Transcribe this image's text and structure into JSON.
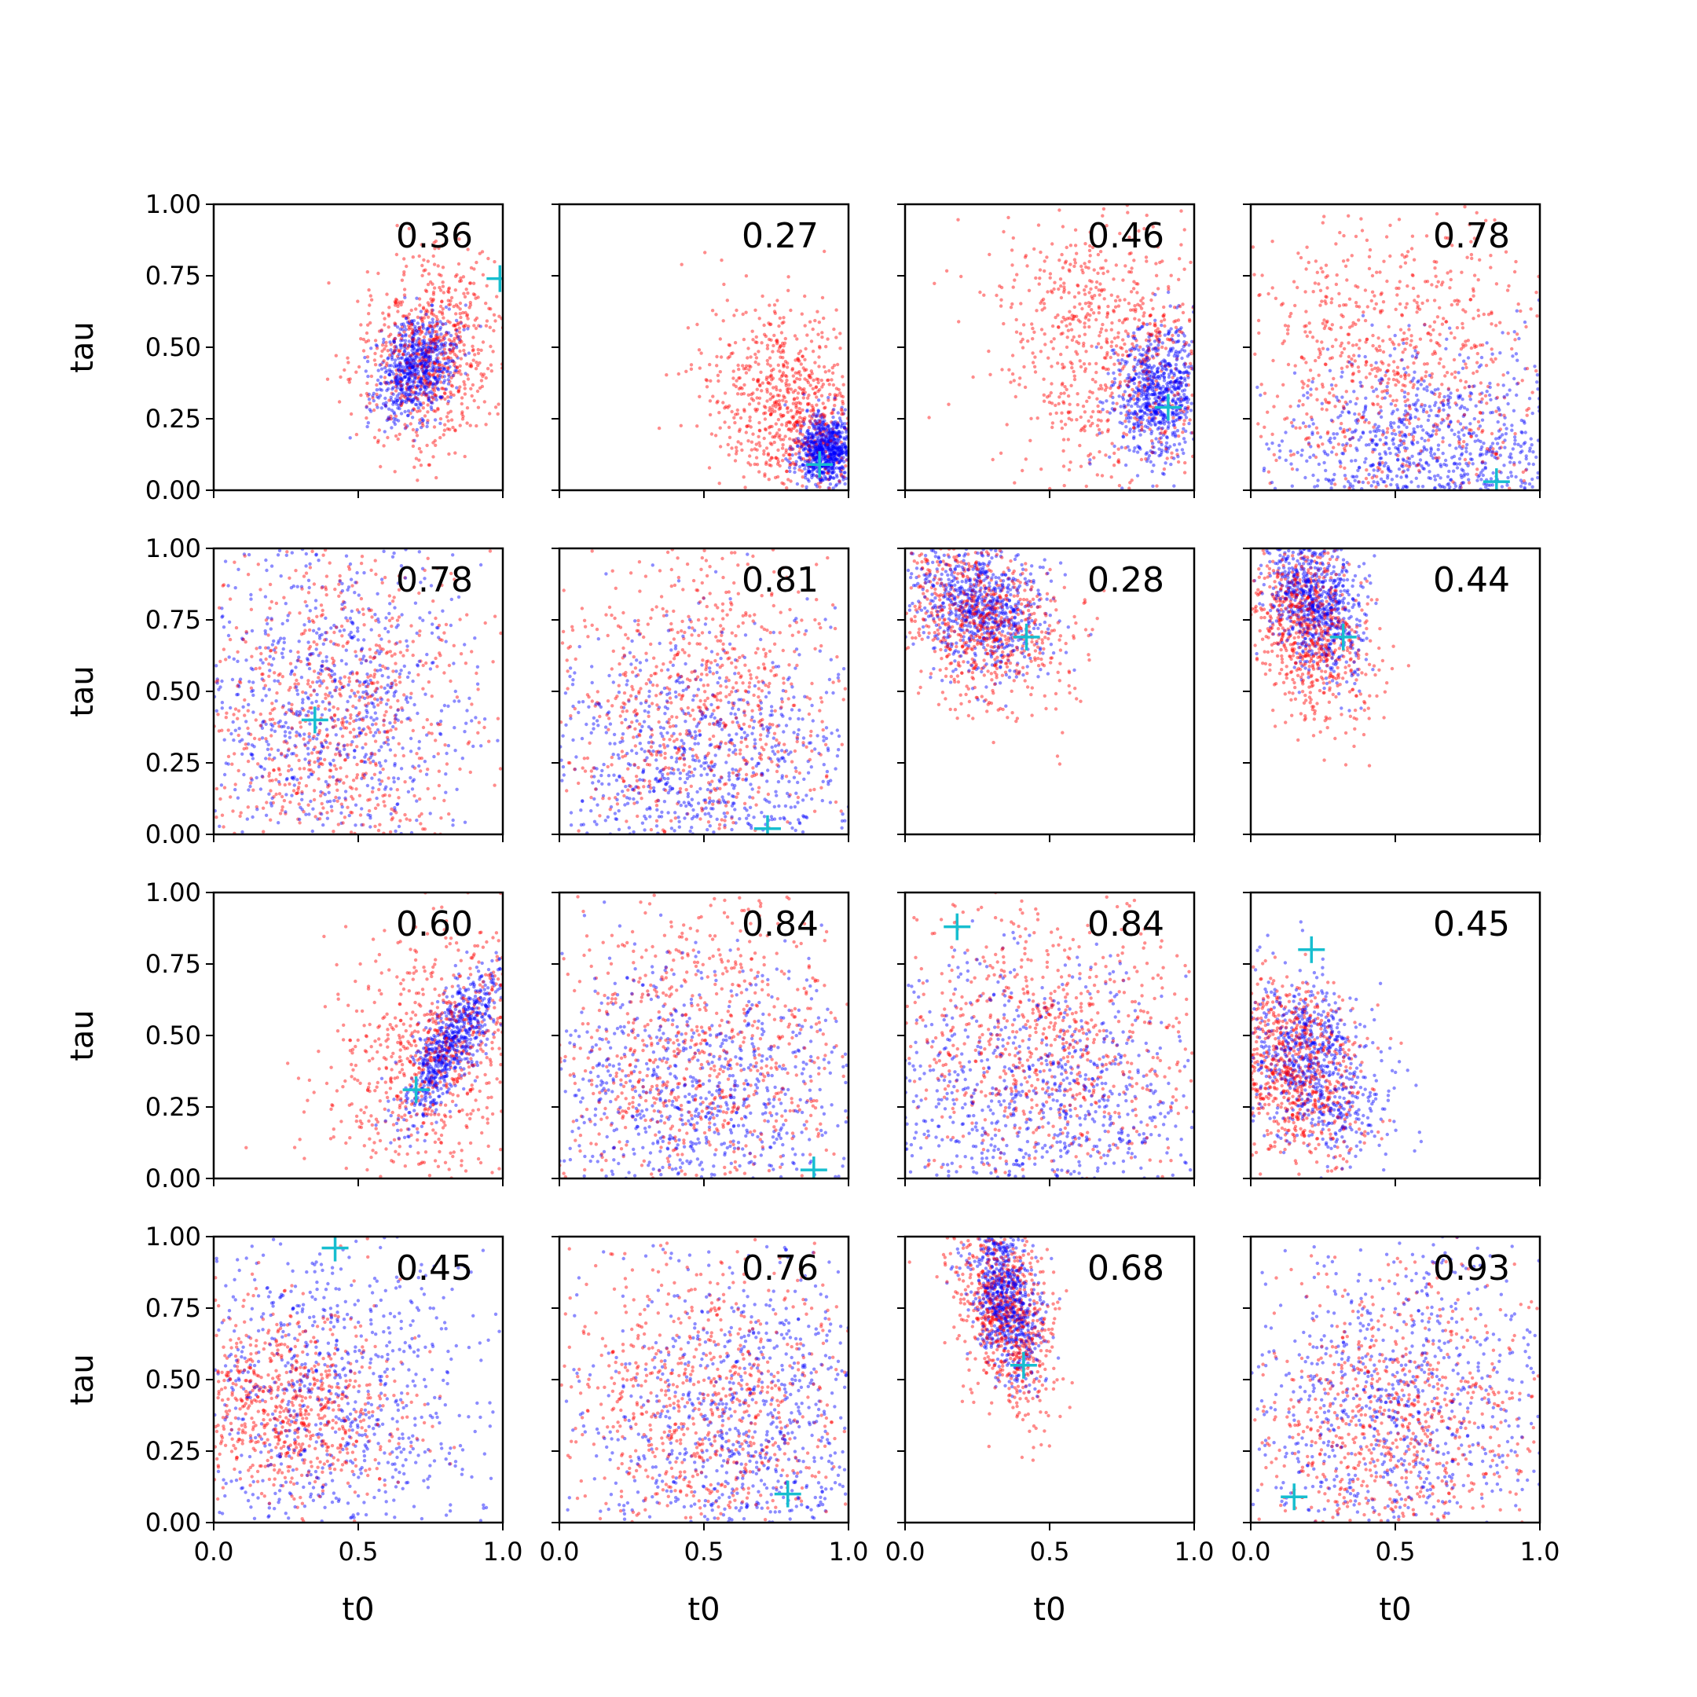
{
  "chart_data": {
    "type": "scatter",
    "layout": "4x4 grid of subplots",
    "xlabel": "t0",
    "ylabel": "tau",
    "xlim": [
      0,
      1
    ],
    "ylim": [
      0,
      1
    ],
    "x_ticks": [
      "0.0",
      "0.5",
      "1.0"
    ],
    "y_ticks": [
      "0.00",
      "0.25",
      "0.50",
      "0.75",
      "1.00"
    ],
    "colors": {
      "red_points": "#ff0000",
      "blue_points": "#0000ff",
      "marker": "#17becf"
    },
    "grid": false,
    "legend": "none",
    "panels": [
      {
        "label": "0.36",
        "marker": [
          0.99,
          0.74
        ],
        "blue": {
          "x": 0.7,
          "y": 0.43,
          "sx": 0.07,
          "sy": 0.09,
          "r": 0.3
        },
        "red": {
          "x": 0.75,
          "y": 0.48,
          "sx": 0.12,
          "sy": 0.17,
          "r": 0.2
        }
      },
      {
        "label": "0.27",
        "marker": [
          0.9,
          0.09
        ],
        "blue": {
          "x": 0.92,
          "y": 0.14,
          "sx": 0.05,
          "sy": 0.06,
          "r": 0.0
        },
        "red": {
          "x": 0.8,
          "y": 0.3,
          "sx": 0.14,
          "sy": 0.16,
          "r": -0.2
        }
      },
      {
        "label": "0.46",
        "marker": [
          0.91,
          0.29
        ],
        "blue": {
          "x": 0.88,
          "y": 0.33,
          "sx": 0.08,
          "sy": 0.12,
          "r": 0.1
        },
        "red": {
          "x": 0.72,
          "y": 0.5,
          "sx": 0.2,
          "sy": 0.24,
          "r": -0.1
        }
      },
      {
        "label": "0.78",
        "marker": [
          0.85,
          0.03
        ],
        "blue": {
          "x": 0.65,
          "y": 0.12,
          "sx": 0.28,
          "sy": 0.18,
          "r": 0.0
        },
        "red": {
          "x": 0.5,
          "y": 0.45,
          "sx": 0.28,
          "sy": 0.28,
          "r": 0.0
        }
      },
      {
        "label": "0.78",
        "marker": [
          0.35,
          0.4
        ],
        "blue": {
          "x": 0.4,
          "y": 0.45,
          "sx": 0.26,
          "sy": 0.3,
          "r": 0.0
        },
        "red": {
          "x": 0.4,
          "y": 0.42,
          "sx": 0.26,
          "sy": 0.28,
          "r": 0.0
        }
      },
      {
        "label": "0.81",
        "marker": [
          0.72,
          0.02
        ],
        "blue": {
          "x": 0.5,
          "y": 0.22,
          "sx": 0.3,
          "sy": 0.24,
          "r": 0.0
        },
        "red": {
          "x": 0.5,
          "y": 0.45,
          "sx": 0.28,
          "sy": 0.28,
          "r": 0.0
        }
      },
      {
        "label": "0.28",
        "marker": [
          0.42,
          0.69
        ],
        "blue": {
          "x": 0.25,
          "y": 0.8,
          "sx": 0.12,
          "sy": 0.12,
          "r": -0.3
        },
        "red": {
          "x": 0.25,
          "y": 0.75,
          "sx": 0.15,
          "sy": 0.15,
          "r": -0.3
        }
      },
      {
        "label": "0.44",
        "marker": [
          0.32,
          0.69
        ],
        "blue": {
          "x": 0.22,
          "y": 0.82,
          "sx": 0.08,
          "sy": 0.13,
          "r": -0.3
        },
        "red": {
          "x": 0.2,
          "y": 0.72,
          "sx": 0.1,
          "sy": 0.16,
          "r": -0.3
        }
      },
      {
        "label": "0.60",
        "marker": [
          0.7,
          0.31
        ],
        "blue": {
          "x": 0.83,
          "y": 0.48,
          "sx": 0.09,
          "sy": 0.14,
          "r": 0.8
        },
        "red": {
          "x": 0.76,
          "y": 0.45,
          "sx": 0.18,
          "sy": 0.22,
          "r": 0.3
        }
      },
      {
        "label": "0.84",
        "marker": [
          0.88,
          0.03
        ],
        "blue": {
          "x": 0.5,
          "y": 0.25,
          "sx": 0.3,
          "sy": 0.26,
          "r": 0.0
        },
        "red": {
          "x": 0.5,
          "y": 0.45,
          "sx": 0.28,
          "sy": 0.28,
          "r": 0.0
        }
      },
      {
        "label": "0.84",
        "marker": [
          0.18,
          0.88
        ],
        "blue": {
          "x": 0.45,
          "y": 0.25,
          "sx": 0.3,
          "sy": 0.24,
          "r": 0.0
        },
        "red": {
          "x": 0.5,
          "y": 0.45,
          "sx": 0.28,
          "sy": 0.28,
          "r": 0.0
        }
      },
      {
        "label": "0.45",
        "marker": [
          0.21,
          0.8
        ],
        "blue": {
          "x": 0.22,
          "y": 0.4,
          "sx": 0.12,
          "sy": 0.16,
          "r": -0.4
        },
        "red": {
          "x": 0.15,
          "y": 0.38,
          "sx": 0.12,
          "sy": 0.16,
          "r": -0.2
        }
      },
      {
        "label": "0.45",
        "marker": [
          0.42,
          0.96
        ],
        "blue": {
          "x": 0.4,
          "y": 0.45,
          "sx": 0.28,
          "sy": 0.3,
          "r": 0.0
        },
        "red": {
          "x": 0.25,
          "y": 0.4,
          "sx": 0.2,
          "sy": 0.18,
          "r": 0.0
        }
      },
      {
        "label": "0.76",
        "marker": [
          0.79,
          0.1
        ],
        "blue": {
          "x": 0.65,
          "y": 0.35,
          "sx": 0.28,
          "sy": 0.3,
          "r": 0.0
        },
        "red": {
          "x": 0.5,
          "y": 0.4,
          "sx": 0.28,
          "sy": 0.28,
          "r": 0.0
        }
      },
      {
        "label": "0.68",
        "marker": [
          0.41,
          0.55
        ],
        "blue": {
          "x": 0.35,
          "y": 0.78,
          "sx": 0.06,
          "sy": 0.14,
          "r": -0.4
        },
        "red": {
          "x": 0.35,
          "y": 0.72,
          "sx": 0.09,
          "sy": 0.18,
          "r": -0.4
        }
      },
      {
        "label": "0.93",
        "marker": [
          0.15,
          0.09
        ],
        "blue": {
          "x": 0.5,
          "y": 0.4,
          "sx": 0.28,
          "sy": 0.3,
          "r": 0.0
        },
        "red": {
          "x": 0.5,
          "y": 0.35,
          "sx": 0.28,
          "sy": 0.25,
          "r": 0.0
        }
      }
    ]
  }
}
